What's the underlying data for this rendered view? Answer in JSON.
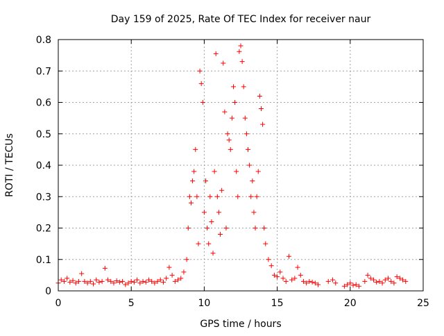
{
  "chart_data": {
    "type": "scatter",
    "title": "Day 159 of 2025, Rate Of TEC Index for receiver naur",
    "xlabel": "GPS time / hours",
    "ylabel": "ROTI / TECUs",
    "xlim": [
      0,
      25
    ],
    "ylim": [
      0,
      0.8
    ],
    "xticks": [
      0,
      5,
      10,
      15,
      20,
      25
    ],
    "yticks": [
      0,
      0.1,
      0.2,
      0.3,
      0.4,
      0.5,
      0.6,
      0.7,
      0.8
    ],
    "xtick_labels": [
      "0",
      "5",
      "10",
      "15",
      "20",
      "25"
    ],
    "ytick_labels": [
      "0",
      "0.1",
      "0.2",
      "0.3",
      "0.4",
      "0.5",
      "0.6",
      "0.7",
      "0.8"
    ],
    "grid": true,
    "marker": "+",
    "color": "#ff0000",
    "series": [
      {
        "name": "ROTI",
        "points": [
          [
            0.0,
            0.025
          ],
          [
            0.2,
            0.035
          ],
          [
            0.4,
            0.03
          ],
          [
            0.6,
            0.04
          ],
          [
            0.8,
            0.028
          ],
          [
            1.0,
            0.033
          ],
          [
            1.2,
            0.025
          ],
          [
            1.4,
            0.03
          ],
          [
            1.6,
            0.055
          ],
          [
            1.8,
            0.03
          ],
          [
            2.0,
            0.025
          ],
          [
            2.2,
            0.03
          ],
          [
            2.4,
            0.022
          ],
          [
            2.6,
            0.035
          ],
          [
            2.8,
            0.028
          ],
          [
            3.0,
            0.03
          ],
          [
            3.2,
            0.072
          ],
          [
            3.4,
            0.035
          ],
          [
            3.6,
            0.03
          ],
          [
            3.8,
            0.025
          ],
          [
            4.0,
            0.032
          ],
          [
            4.2,
            0.028
          ],
          [
            4.4,
            0.03
          ],
          [
            4.6,
            0.02
          ],
          [
            4.8,
            0.025
          ],
          [
            5.0,
            0.03
          ],
          [
            5.2,
            0.028
          ],
          [
            5.4,
            0.035
          ],
          [
            5.6,
            0.025
          ],
          [
            5.8,
            0.03
          ],
          [
            6.0,
            0.028
          ],
          [
            6.2,
            0.035
          ],
          [
            6.4,
            0.03
          ],
          [
            6.6,
            0.025
          ],
          [
            6.8,
            0.03
          ],
          [
            7.0,
            0.035
          ],
          [
            7.2,
            0.028
          ],
          [
            7.4,
            0.04
          ],
          [
            7.6,
            0.075
          ],
          [
            7.8,
            0.05
          ],
          [
            8.0,
            0.03
          ],
          [
            8.2,
            0.035
          ],
          [
            8.4,
            0.04
          ],
          [
            8.6,
            0.06
          ],
          [
            8.8,
            0.1
          ],
          [
            8.9,
            0.2
          ],
          [
            9.0,
            0.3
          ],
          [
            9.1,
            0.28
          ],
          [
            9.2,
            0.35
          ],
          [
            9.3,
            0.38
          ],
          [
            9.4,
            0.45
          ],
          [
            9.5,
            0.3
          ],
          [
            9.6,
            0.15
          ],
          [
            9.7,
            0.7
          ],
          [
            9.8,
            0.66
          ],
          [
            9.9,
            0.6
          ],
          [
            10.0,
            0.25
          ],
          [
            10.1,
            0.35
          ],
          [
            10.2,
            0.2
          ],
          [
            10.3,
            0.15
          ],
          [
            10.4,
            0.3
          ],
          [
            10.5,
            0.22
          ],
          [
            10.6,
            0.12
          ],
          [
            10.7,
            0.38
          ],
          [
            10.8,
            0.755
          ],
          [
            10.9,
            0.3
          ],
          [
            11.0,
            0.25
          ],
          [
            11.1,
            0.18
          ],
          [
            11.2,
            0.32
          ],
          [
            11.3,
            0.725
          ],
          [
            11.4,
            0.57
          ],
          [
            11.5,
            0.2
          ],
          [
            11.6,
            0.5
          ],
          [
            11.7,
            0.48
          ],
          [
            11.8,
            0.45
          ],
          [
            11.9,
            0.55
          ],
          [
            12.0,
            0.65
          ],
          [
            12.1,
            0.6
          ],
          [
            12.2,
            0.38
          ],
          [
            12.3,
            0.3
          ],
          [
            12.4,
            0.762
          ],
          [
            12.5,
            0.78
          ],
          [
            12.6,
            0.73
          ],
          [
            12.7,
            0.65
          ],
          [
            12.8,
            0.55
          ],
          [
            12.9,
            0.5
          ],
          [
            13.0,
            0.45
          ],
          [
            13.1,
            0.4
          ],
          [
            13.2,
            0.3
          ],
          [
            13.3,
            0.35
          ],
          [
            13.4,
            0.25
          ],
          [
            13.5,
            0.2
          ],
          [
            13.6,
            0.3
          ],
          [
            13.7,
            0.38
          ],
          [
            13.8,
            0.62
          ],
          [
            13.9,
            0.58
          ],
          [
            14.0,
            0.53
          ],
          [
            14.1,
            0.2
          ],
          [
            14.2,
            0.15
          ],
          [
            14.4,
            0.1
          ],
          [
            14.6,
            0.08
          ],
          [
            14.8,
            0.05
          ],
          [
            15.0,
            0.045
          ],
          [
            15.2,
            0.06
          ],
          [
            15.4,
            0.04
          ],
          [
            15.6,
            0.03
          ],
          [
            15.8,
            0.11
          ],
          [
            16.0,
            0.035
          ],
          [
            16.2,
            0.04
          ],
          [
            16.4,
            0.075
          ],
          [
            16.6,
            0.05
          ],
          [
            16.8,
            0.03
          ],
          [
            17.0,
            0.025
          ],
          [
            17.2,
            0.03
          ],
          [
            17.4,
            0.028
          ],
          [
            17.6,
            0.025
          ],
          [
            17.8,
            0.02
          ],
          [
            18.5,
            0.03
          ],
          [
            18.8,
            0.035
          ],
          [
            19.0,
            0.025
          ],
          [
            19.6,
            0.015
          ],
          [
            19.8,
            0.02
          ],
          [
            20.0,
            0.025
          ],
          [
            20.2,
            0.018
          ],
          [
            20.4,
            0.02
          ],
          [
            20.6,
            0.015
          ],
          [
            21.0,
            0.03
          ],
          [
            21.2,
            0.05
          ],
          [
            21.4,
            0.04
          ],
          [
            21.6,
            0.035
          ],
          [
            21.8,
            0.028
          ],
          [
            22.0,
            0.03
          ],
          [
            22.2,
            0.025
          ],
          [
            22.4,
            0.035
          ],
          [
            22.6,
            0.04
          ],
          [
            22.8,
            0.03
          ],
          [
            23.0,
            0.025
          ],
          [
            23.2,
            0.045
          ],
          [
            23.4,
            0.04
          ],
          [
            23.6,
            0.035
          ],
          [
            23.8,
            0.03
          ]
        ]
      }
    ]
  }
}
